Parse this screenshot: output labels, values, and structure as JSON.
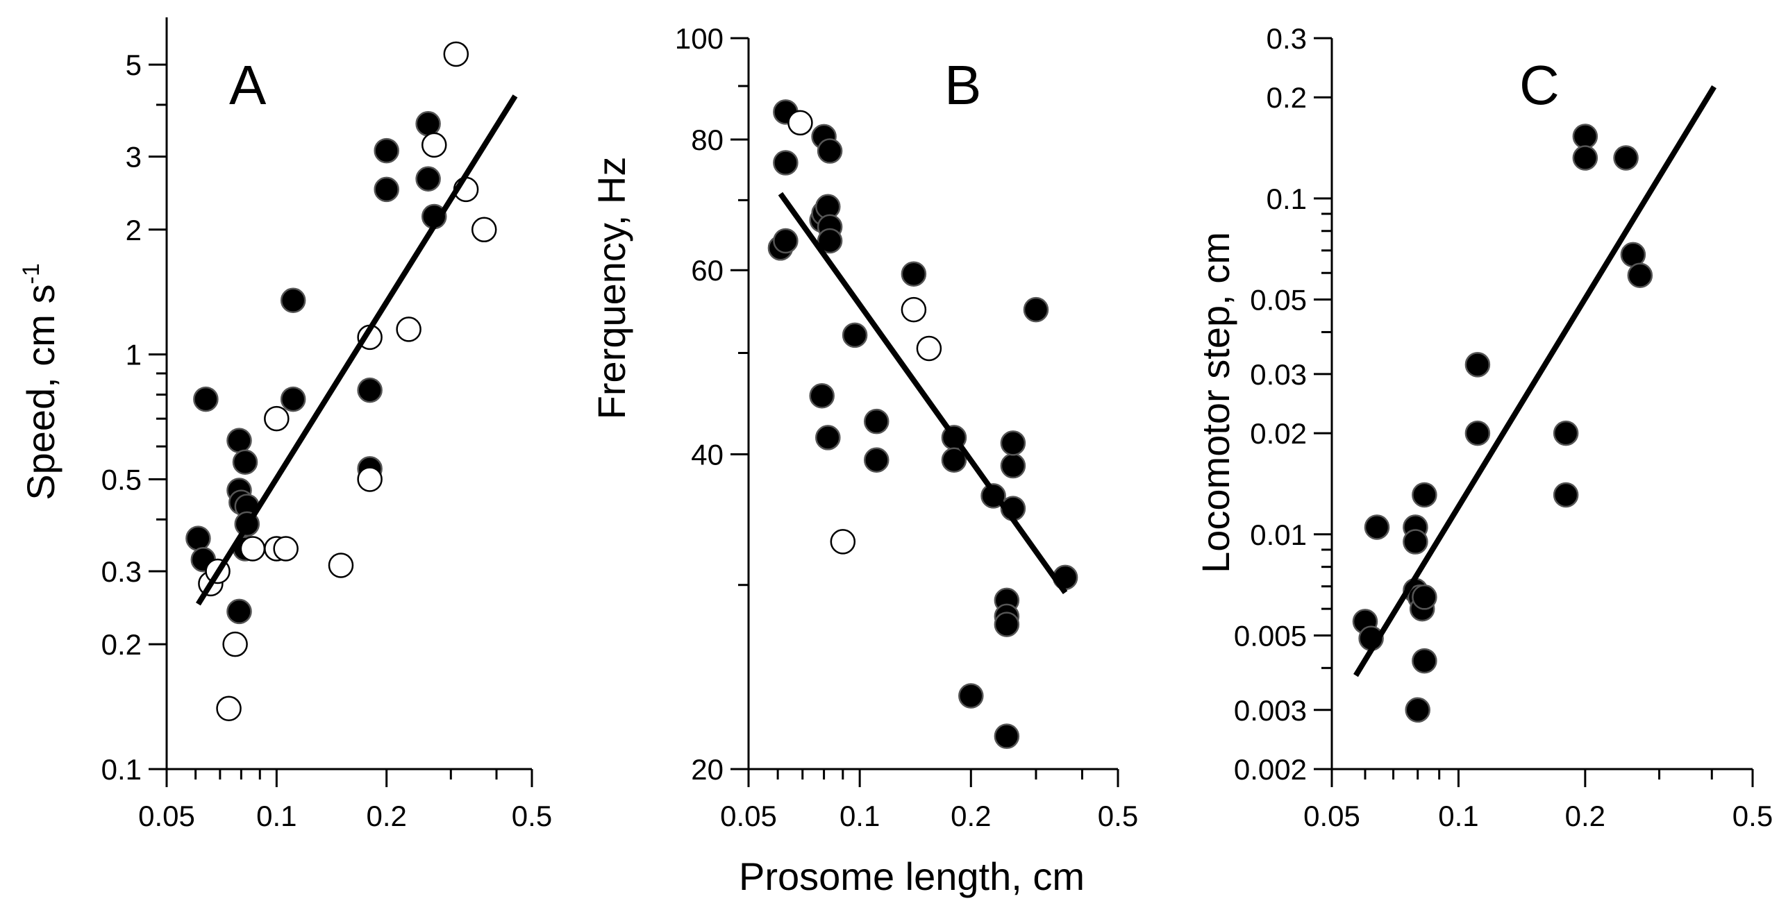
{
  "figure": {
    "shared_xlabel": "Prosome length, cm",
    "colors": {
      "ink": "#000000",
      "open_fill": "#ffffff",
      "background": "#ffffff"
    }
  },
  "chart_data": [
    {
      "type": "scatter",
      "panel": "A",
      "xlabel": "",
      "ylabel_main": "Speed, cm s",
      "ylabel_superscript": "-1",
      "xscale": "log",
      "yscale": "log",
      "xlim": [
        0.05,
        0.5
      ],
      "ylim": [
        0.1,
        6.5
      ],
      "x_ticks": [
        {
          "value": 0.05,
          "label": "0.05"
        },
        {
          "value": 0.1,
          "label": "0.1"
        },
        {
          "value": 0.2,
          "label": "0.2"
        },
        {
          "value": 0.5,
          "label": "0.5"
        }
      ],
      "x_minor_ticks": [
        0.06,
        0.07,
        0.08,
        0.09,
        0.3,
        0.4
      ],
      "y_ticks": [
        {
          "value": 0.1,
          "label": "0.1"
        },
        {
          "value": 0.2,
          "label": "0.2"
        },
        {
          "value": 0.3,
          "label": "0.3"
        },
        {
          "value": 0.5,
          "label": "0.5"
        },
        {
          "value": 1,
          "label": "1"
        },
        {
          "value": 2,
          "label": "2"
        },
        {
          "value": 3,
          "label": "3"
        },
        {
          "value": 5,
          "label": "5"
        }
      ],
      "y_minor_ticks": [
        0.4,
        0.6,
        0.7,
        0.8,
        0.9,
        4
      ],
      "series": [
        {
          "name": "filled",
          "marker": "filled",
          "x": [
            0.061,
            0.063,
            0.064,
            0.079,
            0.079,
            0.079,
            0.08,
            0.082,
            0.082,
            0.083,
            0.083,
            0.111,
            0.111,
            0.18,
            0.18,
            0.2,
            0.2,
            0.26,
            0.26,
            0.27
          ],
          "y": [
            0.36,
            0.32,
            0.78,
            0.24,
            0.62,
            0.47,
            0.44,
            0.34,
            0.55,
            0.43,
            0.39,
            1.35,
            0.78,
            0.82,
            0.53,
            3.1,
            2.5,
            3.6,
            2.65,
            2.15
          ]
        },
        {
          "name": "open",
          "marker": "open",
          "x": [
            0.066,
            0.069,
            0.074,
            0.077,
            0.086,
            0.1,
            0.1,
            0.106,
            0.15,
            0.18,
            0.18,
            0.23,
            0.27,
            0.31,
            0.33,
            0.37
          ],
          "y": [
            0.28,
            0.3,
            0.14,
            0.2,
            0.34,
            0.7,
            0.34,
            0.34,
            0.31,
            0.5,
            1.1,
            1.15,
            3.2,
            5.3,
            2.5,
            2.0
          ]
        }
      ],
      "fit": {
        "x": [
          0.061,
          0.45
        ],
        "y": [
          0.25,
          4.2
        ]
      }
    },
    {
      "type": "scatter",
      "panel": "B",
      "xlabel": "Prosome length, cm",
      "ylabel": "Frerquency, Hz",
      "xscale": "log",
      "yscale": "log",
      "xlim": [
        0.05,
        0.5
      ],
      "ylim": [
        20,
        100
      ],
      "x_ticks": [
        {
          "value": 0.05,
          "label": "0.05"
        },
        {
          "value": 0.1,
          "label": "0.1"
        },
        {
          "value": 0.2,
          "label": "0.2"
        },
        {
          "value": 0.5,
          "label": "0.5"
        }
      ],
      "x_minor_ticks": [
        0.06,
        0.07,
        0.08,
        0.09,
        0.3,
        0.4
      ],
      "y_ticks": [
        {
          "value": 20,
          "label": "20"
        },
        {
          "value": 40,
          "label": "40"
        },
        {
          "value": 60,
          "label": "60"
        },
        {
          "value": 80,
          "label": "80"
        },
        {
          "value": 100,
          "label": "100"
        }
      ],
      "y_minor_ticks": [
        30,
        50,
        70,
        90
      ],
      "series": [
        {
          "name": "filled",
          "marker": "filled",
          "x": [
            0.061,
            0.063,
            0.063,
            0.063,
            0.079,
            0.079,
            0.08,
            0.08,
            0.082,
            0.082,
            0.083,
            0.083,
            0.083,
            0.097,
            0.111,
            0.111,
            0.14,
            0.18,
            0.18,
            0.23,
            0.25,
            0.25,
            0.25,
            0.25,
            0.26,
            0.26,
            0.26,
            0.2,
            0.3,
            0.36
          ],
          "y": [
            63,
            64,
            76,
            85,
            45.5,
            67,
            80.5,
            68,
            41.5,
            69,
            66,
            64,
            78,
            52,
            43,
            39.5,
            59.5,
            41.5,
            39.5,
            36.5,
            29,
            28,
            27.5,
            21.5,
            39,
            35.5,
            41,
            23.5,
            55,
            30.5
          ],
          "_note": ""
        },
        {
          "name": "open",
          "marker": "open",
          "x": [
            0.069,
            0.09,
            0.14,
            0.154
          ],
          "y": [
            83,
            33,
            55,
            50.5
          ]
        }
      ],
      "fit": {
        "x": [
          0.061,
          0.36
        ],
        "y": [
          71,
          29.5
        ]
      }
    },
    {
      "type": "scatter",
      "panel": "C",
      "xlabel": "",
      "ylabel": "Locomotor step, cm",
      "xscale": "log",
      "yscale": "log",
      "xlim": [
        0.05,
        0.5
      ],
      "ylim": [
        0.002,
        0.3
      ],
      "x_ticks": [
        {
          "value": 0.05,
          "label": "0.05"
        },
        {
          "value": 0.1,
          "label": "0.1"
        },
        {
          "value": 0.2,
          "label": "0.2"
        },
        {
          "value": 0.5,
          "label": "0.5"
        }
      ],
      "x_minor_ticks": [
        0.06,
        0.07,
        0.08,
        0.09,
        0.3,
        0.4
      ],
      "y_ticks": [
        {
          "value": 0.002,
          "label": "0.002"
        },
        {
          "value": 0.003,
          "label": "0.003"
        },
        {
          "value": 0.005,
          "label": "0.005"
        },
        {
          "value": 0.01,
          "label": "0.01"
        },
        {
          "value": 0.02,
          "label": "0.02"
        },
        {
          "value": 0.03,
          "label": "0.03"
        },
        {
          "value": 0.05,
          "label": "0.05"
        },
        {
          "value": 0.1,
          "label": "0.1"
        },
        {
          "value": 0.2,
          "label": "0.2"
        },
        {
          "value": 0.3,
          "label": "0.3"
        }
      ],
      "y_minor_ticks": [
        0.004,
        0.006,
        0.007,
        0.008,
        0.009,
        0.04,
        0.06,
        0.07,
        0.08,
        0.09
      ],
      "series": [
        {
          "name": "filled",
          "marker": "filled",
          "x": [
            0.06,
            0.062,
            0.064,
            0.079,
            0.079,
            0.079,
            0.08,
            0.081,
            0.082,
            0.083,
            0.083,
            0.083,
            0.111,
            0.111,
            0.18,
            0.18,
            0.2,
            0.2,
            0.25,
            0.26,
            0.27
          ],
          "y": [
            0.0055,
            0.0049,
            0.0105,
            0.0105,
            0.0095,
            0.0068,
            0.003,
            0.0065,
            0.006,
            0.0042,
            0.0065,
            0.0131,
            0.032,
            0.02,
            0.02,
            0.0131,
            0.153,
            0.132,
            0.132,
            0.068,
            0.059
          ]
        }
      ],
      "fit": {
        "x": [
          0.057,
          0.405
        ],
        "y": [
          0.0038,
          0.215
        ]
      }
    }
  ]
}
